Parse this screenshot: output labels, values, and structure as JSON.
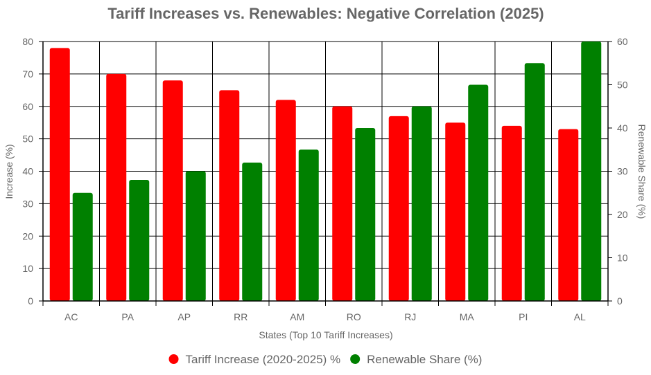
{
  "chart_data": {
    "type": "bar",
    "title": "Tariff Increases vs. Renewables: Negative Correlation (2025)",
    "xlabel": "States (Top 10 Tariff Increases)",
    "ylabel": "Increase (%)",
    "y2label": "Renewable Share (%)",
    "categories": [
      "AC",
      "PA",
      "AP",
      "RR",
      "AM",
      "RO",
      "RJ",
      "MA",
      "PI",
      "AL"
    ],
    "ylim": [
      0,
      80
    ],
    "y2lim": [
      0,
      60
    ],
    "yticks": [
      "0",
      "10",
      "20",
      "30",
      "40",
      "50",
      "60",
      "70",
      "80"
    ],
    "y2ticks": [
      "0",
      "10",
      "20",
      "30",
      "40",
      "50",
      "60"
    ],
    "grid": true,
    "legend_position": "bottom",
    "series": [
      {
        "name": "Tariff Increase (2020-2025) %",
        "axis": "left",
        "color": "#ff0000",
        "values": [
          78,
          70,
          68,
          65,
          62,
          60,
          57,
          55,
          54,
          53
        ]
      },
      {
        "name": "Renewable Share (%)",
        "axis": "right",
        "color": "#008000",
        "values": [
          25,
          28,
          30,
          32,
          35,
          40,
          45,
          50,
          55,
          60
        ]
      }
    ]
  }
}
